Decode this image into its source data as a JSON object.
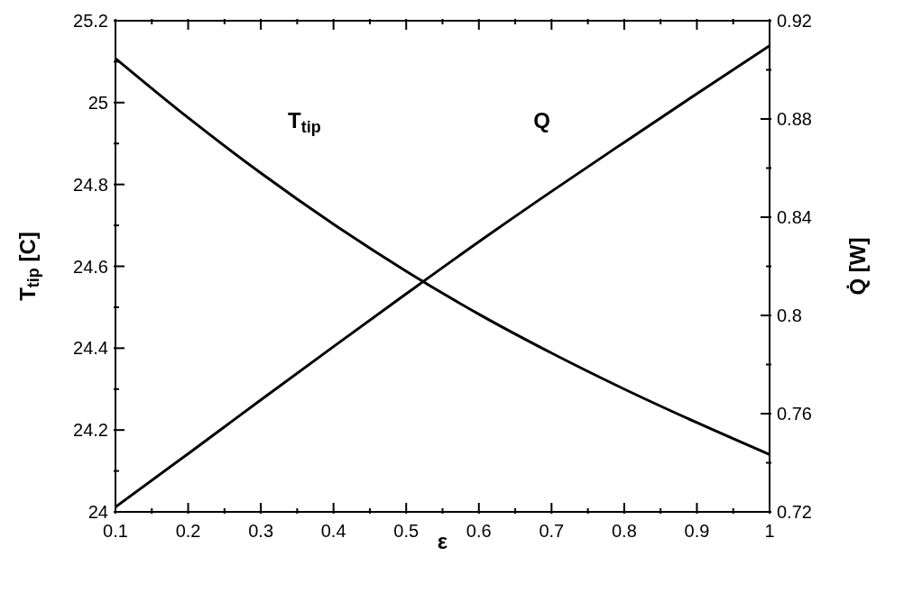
{
  "chart_data": {
    "type": "line",
    "xlabel": "ε",
    "ylabel": "T$_{tip}$  [C]",
    "y2label": "Q̇  [W]",
    "x": [
      0.1,
      0.2,
      0.3,
      0.4,
      0.5,
      0.6,
      0.7,
      0.8,
      0.9,
      1
    ],
    "series": [
      {
        "name": "T$_{tip}$",
        "color": "#000000",
        "values": [
          25.108,
          24.963,
          24.828,
          24.703,
          24.588,
          24.483,
          24.388,
          24.3,
          24.218,
          24.14
        ]
      },
      {
        "name": "Q",
        "color": "#000000",
        "axis": "y2",
        "values": [
          0.722,
          0.7437,
          0.7656,
          0.7873,
          0.8088,
          0.83,
          0.8505,
          0.8705,
          0.8903,
          0.9098
        ]
      }
    ],
    "xlim": [
      0.1,
      1
    ],
    "xticks": [
      0.1,
      {
        "value": 0.15,
        "label": null
      },
      0.2,
      {
        "value": 0.25,
        "label": null
      },
      0.3,
      {
        "value": 0.35,
        "label": null
      },
      0.4,
      {
        "value": 0.45,
        "label": null
      },
      0.5,
      {
        "value": 0.55,
        "label": null
      },
      0.6,
      {
        "value": 0.65,
        "label": null
      },
      0.7,
      {
        "value": 0.75,
        "label": null
      },
      0.8,
      {
        "value": 0.85,
        "label": null
      },
      0.9,
      {
        "value": 0.95,
        "label": null
      },
      1
    ],
    "ylim": [
      24,
      25.2
    ],
    "yticks": [
      24,
      {
        "value": 24.1,
        "label": null
      },
      24.2,
      {
        "value": 24.3,
        "label": null
      },
      24.4,
      {
        "value": 24.5,
        "label": null
      },
      24.6,
      {
        "value": 24.7,
        "label": null
      },
      24.8,
      {
        "value": 24.9,
        "label": null
      },
      25,
      {
        "value": 25.1,
        "label": null
      },
      25.2
    ],
    "y2lim": [
      0.72,
      0.92
    ],
    "y2ticks": [
      0.72,
      {
        "value": 0.74,
        "label": null
      },
      0.76,
      {
        "value": 0.78,
        "label": null
      },
      0.8,
      {
        "value": 0.82,
        "label": null
      },
      0.84,
      {
        "value": 0.86,
        "label": null
      },
      0.88,
      {
        "value": 0.9,
        "label": null
      },
      0.92
    ],
    "grid": false,
    "legend": false,
    "marker": "none",
    "line_style": "solid"
  }
}
